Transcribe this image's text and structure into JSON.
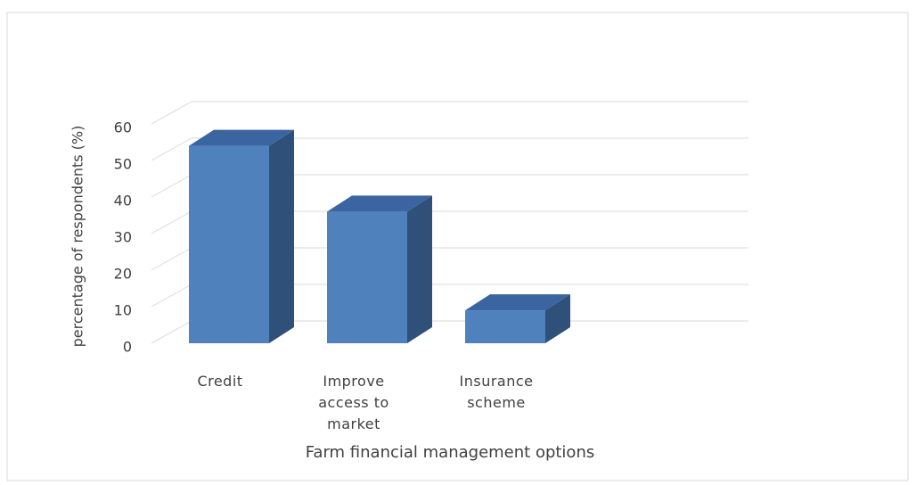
{
  "chart_data": {
    "type": "bar3d",
    "x_label": "Farm financial management options",
    "y_label": "percentage of respondents (%)",
    "categories": [
      "Credit",
      "Improve access to market",
      "Insurance scheme"
    ],
    "values": [
      54,
      36,
      9
    ],
    "color": "#4f81bd",
    "ylim": [
      0,
      60
    ],
    "yticks": [
      0,
      10,
      20,
      30,
      40,
      50,
      60
    ],
    "grid": true
  }
}
